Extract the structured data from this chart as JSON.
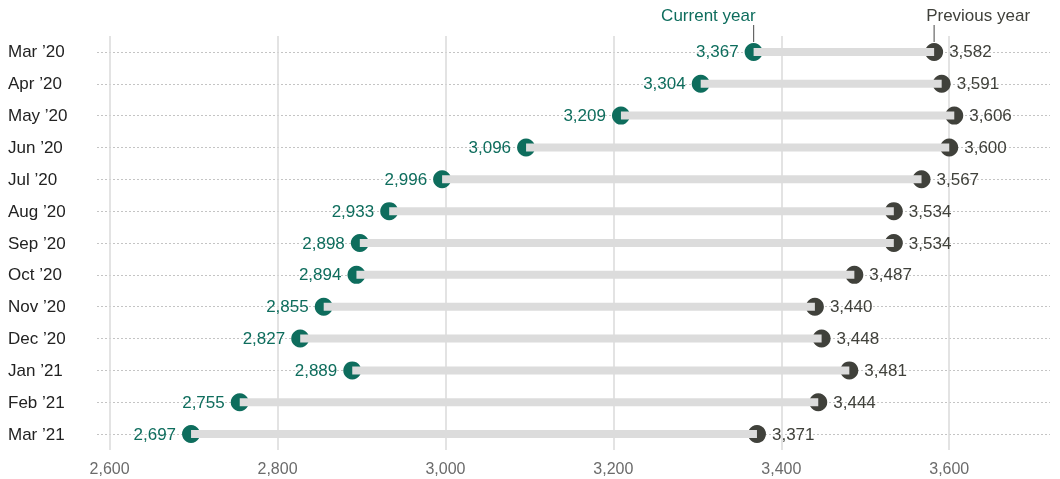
{
  "chart_data": {
    "type": "scatter",
    "orientation": "horizontal",
    "categories": [
      "Mar ’20",
      "Apr ’20",
      "May ’20",
      "Jun ’20",
      "Jul ’20",
      "Aug ’20",
      "Sep ’20",
      "Oct ’20",
      "Nov ’20",
      "Dec ’20",
      "Jan ’21",
      "Feb ’21",
      "Mar ’21"
    ],
    "series": [
      {
        "type": "bar",
        "color": "#dcdcdc",
        "base": [
          3367,
          3304,
          3209,
          3096,
          2996,
          2933,
          2898,
          2894,
          2855,
          2827,
          2889,
          2755,
          2697
        ],
        "values": [
          215,
          287,
          397,
          504,
          571,
          601,
          636,
          593,
          585,
          621,
          592,
          689,
          674
        ]
      },
      {
        "name": "Current year",
        "color": "#0e6d5d",
        "values": [
          3367,
          3304,
          3209,
          3096,
          2996,
          2933,
          2898,
          2894,
          2855,
          2827,
          2889,
          2755,
          2697
        ],
        "value_labels": [
          "3,367",
          "3,304",
          "3,209",
          "3,096",
          "2,996",
          "2,933",
          "2,898",
          "2,894",
          "2,855",
          "2,827",
          "2,889",
          "2,755",
          "2,697"
        ]
      },
      {
        "name": "Previous year",
        "color": "#40413b",
        "values": [
          3582,
          3591,
          3606,
          3600,
          3567,
          3534,
          3534,
          3487,
          3440,
          3448,
          3481,
          3444,
          3371
        ],
        "value_labels": [
          "3,582",
          "3,591",
          "3,606",
          "3,600",
          "3,567",
          "3,534",
          "3,534",
          "3,487",
          "3,440",
          "3,448",
          "3,481",
          "3,444",
          "3,371"
        ]
      }
    ],
    "xlim": [
      2585,
      3720
    ],
    "xticks": [
      {
        "value": 2600,
        "label": "2,600"
      },
      {
        "value": 2800,
        "label": "2,800"
      },
      {
        "value": 3000,
        "label": "3,000"
      },
      {
        "value": 3200,
        "label": "3,200"
      },
      {
        "value": 3400,
        "label": "3,400"
      },
      {
        "value": 3600,
        "label": "3,600"
      }
    ],
    "grid": true,
    "marker": "circle"
  }
}
